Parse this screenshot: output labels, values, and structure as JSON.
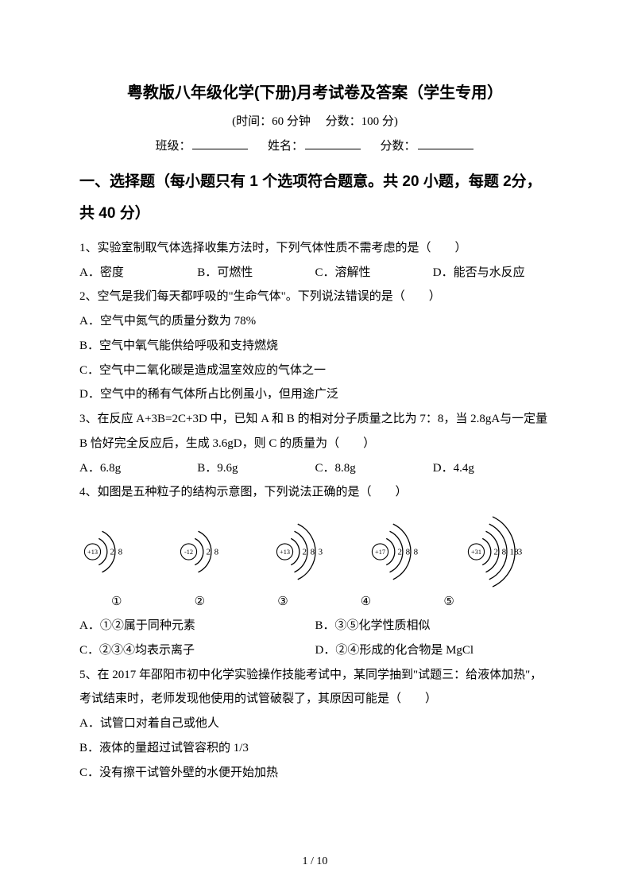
{
  "page": {
    "title": "粤教版八年级化学(下册)月考试卷及答案（学生专用）",
    "time_score": "(时间：60 分钟　 分数：100 分)",
    "class_label": "班级：",
    "name_label": "姓名：",
    "score_label": "分数：",
    "footer": "1 / 10"
  },
  "section1": {
    "heading": "一、选择题（每小题只有 1 个选项符合题意。共 20 小题，每题 2分，共 40 分）"
  },
  "q1": {
    "stem": "1、实验室制取气体选择收集方法时，下列气体性质不需考虑的是（　　）",
    "a": "A．密度",
    "b": "B．可燃性",
    "c": "C．溶解性",
    "d": "D．能否与水反应"
  },
  "q2": {
    "stem": "2、空气是我们每天都呼吸的\"生命气体\"。下列说法错误的是（　　）",
    "a": "A．空气中氮气的质量分数为 78%",
    "b": "B．空气中氧气能供给呼吸和支持燃烧",
    "c": "C．空气中二氧化碳是造成温室效应的气体之一",
    "d": "D．空气中的稀有气体所占比例虽小，但用途广泛"
  },
  "q3": {
    "stem": "3、在反应 A+3B=2C+3D 中，已知 A 和 B 的相对分子质量之比为 7：8，当 2.8gA与一定量 B 恰好完全反应后，生成 3.6gD，则 C 的质量为（　　）",
    "a": "A．6.8g",
    "b": "B．9.6g",
    "c": "C．8.8g",
    "d": "D．4.4g"
  },
  "q4": {
    "stem": "4、如图是五种粒子的结构示意图，下列说法正确的是（　　）",
    "atoms": [
      {
        "nucleus": "+13",
        "shells": [
          "2",
          "8"
        ],
        "label": "①"
      },
      {
        "nucleus": "-12",
        "shells": [
          "2",
          "8"
        ],
        "label": "②"
      },
      {
        "nucleus": "+13",
        "shells": [
          "2",
          "8",
          "3"
        ],
        "label": "③"
      },
      {
        "nucleus": "+17",
        "shells": [
          "2",
          "8",
          "8"
        ],
        "label": "④"
      },
      {
        "nucleus": "+31",
        "shells": [
          "2",
          "8",
          "18",
          "3"
        ],
        "label": "⑤"
      }
    ],
    "atom_style": {
      "nucleus_radius": 11,
      "nucleus_stroke": "#000000",
      "arc_stroke": "#000000",
      "arc_stroke_width": 1.4,
      "arc_gap": 11,
      "arc_first_r": 20,
      "text_color": "#000000",
      "nucleus_font_size": 9,
      "shell_font_size": 12
    },
    "a": "A．①②属于同种元素",
    "b": "B．③⑤化学性质相似",
    "c": "C．②③④均表示离子",
    "d": "D．②④形成的化合物是 MgCl"
  },
  "q5": {
    "stem": "5、在 2017 年邵阳市初中化学实验操作技能考试中，某同学抽到\"试题三：给液体加热\"，考试结束时，老师发现他使用的试管破裂了，其原因可能是（　　）",
    "a": "A．试管口对着自己或他人",
    "b": "B．液体的量超过试管容积的 1/3",
    "c": "C．没有擦干试管外壁的水便开始加热"
  }
}
